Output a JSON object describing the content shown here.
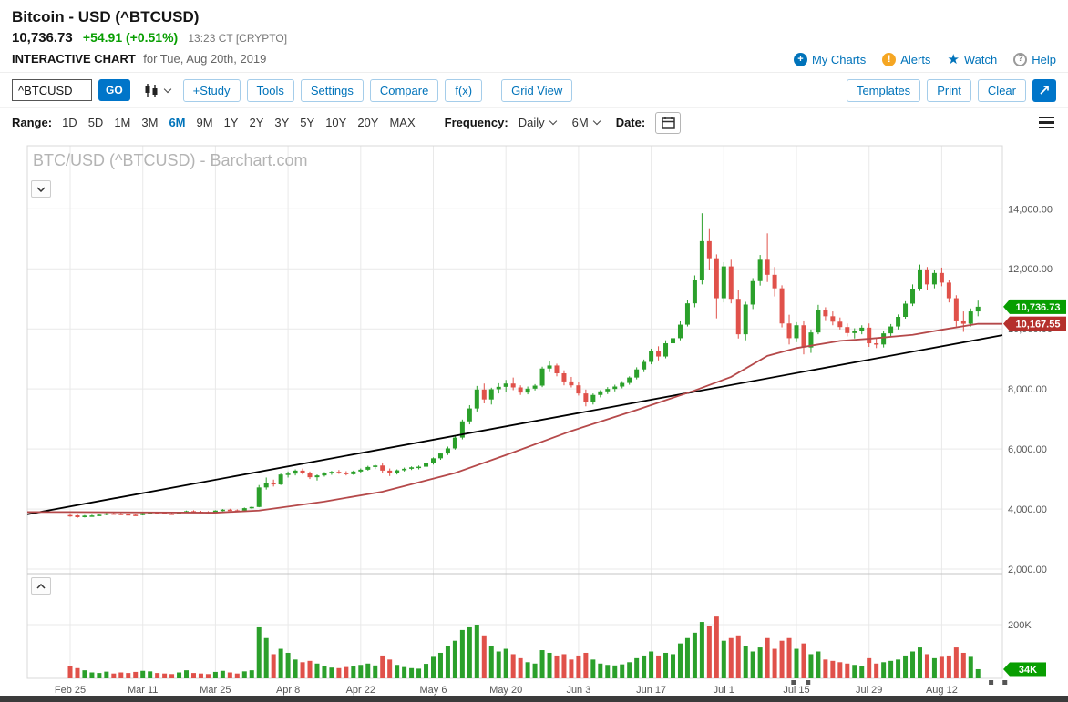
{
  "header": {
    "title": "Bitcoin - USD (^BTCUSD)",
    "last_price": "10,736.73",
    "change": "+54.91 (+0.51%)",
    "quote_time": "13:23 CT [CRYPTO]",
    "page_label": "INTERACTIVE CHART",
    "page_date": "for Tue, Aug 20th, 2019",
    "my_charts": "My Charts",
    "alerts": "Alerts",
    "watch": "Watch",
    "help": "Help"
  },
  "toolbar": {
    "symbol_value": "^BTCUSD",
    "go": "GO",
    "study": "+Study",
    "tools": "Tools",
    "settings": "Settings",
    "compare": "Compare",
    "fx": "f(x)",
    "grid_view": "Grid View",
    "templates": "Templates",
    "print": "Print",
    "clear": "Clear"
  },
  "rangebar": {
    "range_label": "Range:",
    "ranges": [
      "1D",
      "5D",
      "1M",
      "3M",
      "6M",
      "9M",
      "1Y",
      "2Y",
      "3Y",
      "5Y",
      "10Y",
      "20Y",
      "MAX"
    ],
    "selected": "6M",
    "frequency_label": "Frequency:",
    "frequency": "Daily",
    "period": "6M",
    "date_label": "Date:"
  },
  "chart": {
    "watermark": "BTC/USD (^BTCUSD) - Barchart.com",
    "last_badge": "10,736.73",
    "ma_badge": "10,167.55",
    "volume_badge": "34K",
    "colors": {
      "up": "#2ba02b",
      "down": "#e0514a",
      "badge_up": "#089e01",
      "badge_down": "#b5302c",
      "ma": "#b5494a",
      "trend": "#000000",
      "grid": "#e9e9e9",
      "axis_text": "#555555"
    }
  },
  "chart_data": {
    "type": "candlestick",
    "title": "BTC/USD (^BTCUSD) - Barchart.com",
    "symbol": "^BTCUSD",
    "frequency": "Daily",
    "range": "6M",
    "ylim": [
      1850,
      16100
    ],
    "y_ticks": [
      {
        "value": 14000,
        "label": "14,000.00"
      },
      {
        "value": 12000,
        "label": "12,000.00"
      },
      {
        "value": 10000,
        "label": "10,000.00"
      },
      {
        "value": 8000,
        "label": "8,000.00"
      },
      {
        "value": 6000,
        "label": "6,000.00"
      },
      {
        "value": 4000,
        "label": "4,000.00"
      },
      {
        "value": 2000,
        "label": "2,000.00"
      }
    ],
    "x_ticks": [
      {
        "i": 0,
        "label": "Feb 25"
      },
      {
        "i": 10,
        "label": "Mar 11"
      },
      {
        "i": 20,
        "label": "Mar 25"
      },
      {
        "i": 30,
        "label": "Apr 8"
      },
      {
        "i": 40,
        "label": "Apr 22"
      },
      {
        "i": 50,
        "label": "May 6"
      },
      {
        "i": 60,
        "label": "May 20"
      },
      {
        "i": 70,
        "label": "Jun 3"
      },
      {
        "i": 80,
        "label": "Jun 17"
      },
      {
        "i": 90,
        "label": "Jul 1"
      },
      {
        "i": 100,
        "label": "Jul 15"
      },
      {
        "i": 110,
        "label": "Jul 29"
      },
      {
        "i": 120,
        "label": "Aug 12"
      }
    ],
    "volume_axis": {
      "tick_value_k": 200,
      "tick_label": "200K"
    },
    "last_price": 10736.73,
    "ma_last": 10167.55,
    "last_volume_k": 34,
    "trendline": {
      "left_price": 3825,
      "right_price": 9790
    },
    "ma_points": [
      [
        0,
        3900
      ],
      [
        10,
        3890
      ],
      [
        20,
        3880
      ],
      [
        26,
        3950
      ],
      [
        35,
        4250
      ],
      [
        43,
        4580
      ],
      [
        53,
        5200
      ],
      [
        60,
        5800
      ],
      [
        69,
        6600
      ],
      [
        78,
        7300
      ],
      [
        86,
        7950
      ],
      [
        91,
        8400
      ],
      [
        96,
        9100
      ],
      [
        100,
        9360
      ],
      [
        106,
        9600
      ],
      [
        110,
        9670
      ],
      [
        116,
        9800
      ],
      [
        120,
        9970
      ],
      [
        125,
        10167.55
      ]
    ],
    "bottom_marker_indices": [
      99.6,
      101.6,
      126.8,
      128.7
    ],
    "candles": [
      [
        3800,
        3860,
        3740,
        3790,
        45
      ],
      [
        3790,
        3820,
        3700,
        3730,
        38
      ],
      [
        3730,
        3800,
        3720,
        3780,
        30
      ],
      [
        3780,
        3810,
        3750,
        3785,
        22
      ],
      [
        3785,
        3830,
        3770,
        3810,
        20
      ],
      [
        3810,
        3870,
        3790,
        3855,
        25
      ],
      [
        3855,
        3880,
        3820,
        3845,
        18
      ],
      [
        3845,
        3865,
        3800,
        3830,
        22
      ],
      [
        3830,
        3850,
        3790,
        3810,
        20
      ],
      [
        3810,
        3840,
        3780,
        3800,
        24
      ],
      [
        3800,
        3870,
        3790,
        3860,
        28
      ],
      [
        3860,
        3900,
        3840,
        3880,
        26
      ],
      [
        3880,
        3910,
        3850,
        3870,
        20
      ],
      [
        3870,
        3890,
        3830,
        3850,
        18
      ],
      [
        3850,
        3880,
        3820,
        3840,
        16
      ],
      [
        3840,
        3905,
        3830,
        3890,
        22
      ],
      [
        3890,
        3950,
        3870,
        3930,
        30
      ],
      [
        3930,
        3960,
        3890,
        3910,
        20
      ],
      [
        3910,
        3940,
        3880,
        3900,
        18
      ],
      [
        3900,
        3930,
        3870,
        3890,
        16
      ],
      [
        3890,
        3960,
        3880,
        3950,
        24
      ],
      [
        3950,
        4000,
        3920,
        3980,
        28
      ],
      [
        3980,
        4010,
        3940,
        3960,
        22
      ],
      [
        3960,
        3990,
        3930,
        3950,
        18
      ],
      [
        3950,
        4050,
        3940,
        4030,
        26
      ],
      [
        4030,
        4090,
        4000,
        4070,
        30
      ],
      [
        4070,
        4800,
        4060,
        4720,
        190
      ],
      [
        4720,
        5050,
        4650,
        4880,
        150
      ],
      [
        4880,
        4980,
        4750,
        4820,
        90
      ],
      [
        4820,
        5180,
        4800,
        5150,
        110
      ],
      [
        5150,
        5250,
        5050,
        5180,
        95
      ],
      [
        5180,
        5320,
        5120,
        5280,
        70
      ],
      [
        5280,
        5350,
        5150,
        5200,
        60
      ],
      [
        5200,
        5250,
        5000,
        5060,
        65
      ],
      [
        5060,
        5150,
        4950,
        5120,
        55
      ],
      [
        5120,
        5230,
        5080,
        5190,
        45
      ],
      [
        5190,
        5270,
        5140,
        5240,
        40
      ],
      [
        5240,
        5300,
        5170,
        5210,
        38
      ],
      [
        5210,
        5260,
        5120,
        5160,
        42
      ],
      [
        5160,
        5280,
        5140,
        5250,
        44
      ],
      [
        5250,
        5350,
        5200,
        5310,
        50
      ],
      [
        5310,
        5440,
        5280,
        5400,
        55
      ],
      [
        5400,
        5480,
        5330,
        5450,
        48
      ],
      [
        5450,
        5550,
        5200,
        5280,
        85
      ],
      [
        5280,
        5350,
        5100,
        5190,
        70
      ],
      [
        5190,
        5320,
        5150,
        5290,
        50
      ],
      [
        5290,
        5380,
        5250,
        5340,
        42
      ],
      [
        5340,
        5420,
        5300,
        5390,
        38
      ],
      [
        5390,
        5450,
        5320,
        5410,
        36
      ],
      [
        5410,
        5550,
        5380,
        5520,
        54
      ],
      [
        5520,
        5720,
        5480,
        5690,
        80
      ],
      [
        5690,
        5880,
        5640,
        5850,
        95
      ],
      [
        5850,
        6080,
        5800,
        6020,
        120
      ],
      [
        6020,
        6420,
        5980,
        6380,
        140
      ],
      [
        6380,
        6980,
        6320,
        6920,
        180
      ],
      [
        6920,
        7460,
        6820,
        7350,
        190
      ],
      [
        7350,
        8100,
        7250,
        7980,
        200
      ],
      [
        7980,
        8180,
        7520,
        7650,
        160
      ],
      [
        7650,
        8040,
        7480,
        7990,
        120
      ],
      [
        7990,
        8190,
        7850,
        8070,
        100
      ],
      [
        8070,
        8300,
        7900,
        8180,
        110
      ],
      [
        8180,
        8380,
        7960,
        8050,
        90
      ],
      [
        8050,
        8120,
        7800,
        7880,
        75
      ],
      [
        7880,
        8080,
        7820,
        8010,
        60
      ],
      [
        8010,
        8160,
        7950,
        8110,
        55
      ],
      [
        8110,
        8740,
        8060,
        8680,
        105
      ],
      [
        8680,
        8920,
        8560,
        8780,
        95
      ],
      [
        8780,
        8840,
        8420,
        8520,
        85
      ],
      [
        8520,
        8620,
        8120,
        8250,
        90
      ],
      [
        8250,
        8400,
        8050,
        8120,
        70
      ],
      [
        8120,
        8220,
        7780,
        7850,
        85
      ],
      [
        7850,
        7980,
        7420,
        7560,
        95
      ],
      [
        7560,
        7850,
        7480,
        7800,
        70
      ],
      [
        7800,
        7960,
        7720,
        7920,
        55
      ],
      [
        7920,
        8060,
        7830,
        8000,
        50
      ],
      [
        8000,
        8140,
        7920,
        8080,
        48
      ],
      [
        8080,
        8260,
        8020,
        8200,
        52
      ],
      [
        8200,
        8420,
        8140,
        8380,
        60
      ],
      [
        8380,
        8720,
        8320,
        8650,
        75
      ],
      [
        8650,
        8980,
        8560,
        8900,
        85
      ],
      [
        8900,
        9340,
        8820,
        9270,
        100
      ],
      [
        9270,
        9420,
        8950,
        9080,
        85
      ],
      [
        9080,
        9620,
        9020,
        9520,
        95
      ],
      [
        9520,
        9780,
        9380,
        9690,
        90
      ],
      [
        9690,
        10250,
        9620,
        10140,
        130
      ],
      [
        10140,
        10950,
        10080,
        10850,
        150
      ],
      [
        10850,
        11780,
        10720,
        11620,
        170
      ],
      [
        11620,
        13850,
        11480,
        12920,
        210
      ],
      [
        12920,
        13350,
        11950,
        12350,
        195
      ],
      [
        12350,
        12480,
        10350,
        11020,
        230
      ],
      [
        11020,
        12220,
        10880,
        12080,
        140
      ],
      [
        12080,
        12300,
        10850,
        11000,
        150
      ],
      [
        11000,
        11290,
        9680,
        9820,
        160
      ],
      [
        9820,
        10900,
        9620,
        10810,
        120
      ],
      [
        10810,
        11690,
        10660,
        11590,
        100
      ],
      [
        11590,
        12460,
        11440,
        12300,
        115
      ],
      [
        12300,
        13180,
        11560,
        11800,
        150
      ],
      [
        11800,
        12060,
        11080,
        11350,
        110
      ],
      [
        11350,
        11450,
        10050,
        10180,
        140
      ],
      [
        10180,
        10470,
        9480,
        9690,
        150
      ],
      [
        9690,
        10220,
        9560,
        10120,
        110
      ],
      [
        10120,
        10250,
        9150,
        9380,
        130
      ],
      [
        9380,
        9980,
        9200,
        9880,
        90
      ],
      [
        9880,
        10800,
        9820,
        10620,
        100
      ],
      [
        10620,
        10720,
        10260,
        10420,
        70
      ],
      [
        10420,
        10580,
        10120,
        10240,
        65
      ],
      [
        10240,
        10380,
        9980,
        10060,
        60
      ],
      [
        10060,
        10180,
        9750,
        9860,
        55
      ],
      [
        9860,
        10020,
        9680,
        9920,
        50
      ],
      [
        9920,
        10120,
        9820,
        10040,
        45
      ],
      [
        10040,
        10180,
        9400,
        9520,
        75
      ],
      [
        9520,
        9680,
        9360,
        9480,
        55
      ],
      [
        9480,
        9920,
        9380,
        9850,
        60
      ],
      [
        9850,
        10160,
        9760,
        10080,
        65
      ],
      [
        10080,
        10480,
        9980,
        10400,
        70
      ],
      [
        10400,
        10920,
        10340,
        10840,
        85
      ],
      [
        10840,
        11480,
        10760,
        11340,
        100
      ],
      [
        11340,
        12140,
        11260,
        11980,
        115
      ],
      [
        11980,
        12060,
        11280,
        11480,
        90
      ],
      [
        11480,
        11960,
        11350,
        11860,
        75
      ],
      [
        11860,
        12040,
        11420,
        11540,
        80
      ],
      [
        11540,
        11640,
        10880,
        11020,
        85
      ],
      [
        11020,
        11120,
        10080,
        10250,
        115
      ],
      [
        10250,
        10580,
        9900,
        10170,
        95
      ],
      [
        10170,
        10680,
        10080,
        10580,
        80
      ],
      [
        10580,
        10940,
        10420,
        10736.73,
        34
      ]
    ]
  }
}
